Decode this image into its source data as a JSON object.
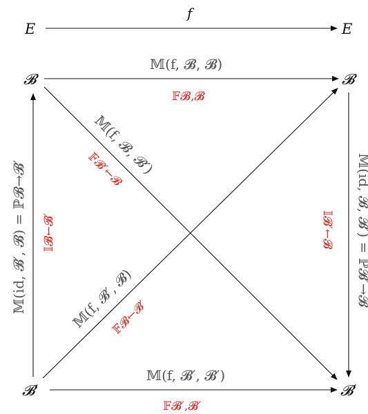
{
  "nodes": {
    "top_left": "E",
    "top_right": "E",
    "mid_left": "𝓑",
    "mid_right": "𝓑",
    "bottom_left": "𝓑′",
    "bottom_right": "𝓑′"
  },
  "labels": {
    "f": "f",
    "top_matrix": "𝕄(f, 𝓑, 𝓑)",
    "top_red": "𝔽𝓑,𝓑",
    "diag_down_matrix": "𝕄(f, 𝓑, 𝓑′)",
    "diag_down_red": "𝔽𝓑′←𝓑",
    "diag_up_matrix": "𝕄(f, 𝓑′, 𝓑)",
    "diag_up_red": "𝔽𝓑←𝓑′",
    "left_matrix": "𝕄(id, 𝓑′, 𝓑) = ℙ𝓑→𝓑′",
    "left_red": "𝕀𝓑←𝓑′",
    "right_matrix": "𝕄(id, 𝓑, 𝓑′) = ℙ𝓑′→𝓑",
    "right_red": "𝕀𝓑′←𝓑",
    "bottom_matrix": "𝕄(f, 𝓑′, 𝓑′)",
    "bottom_red": "𝔽𝓑′,𝓑′"
  },
  "colors": {
    "arrow": "#111111",
    "matrix_label": "#555555",
    "red_label": "#e0302a"
  }
}
